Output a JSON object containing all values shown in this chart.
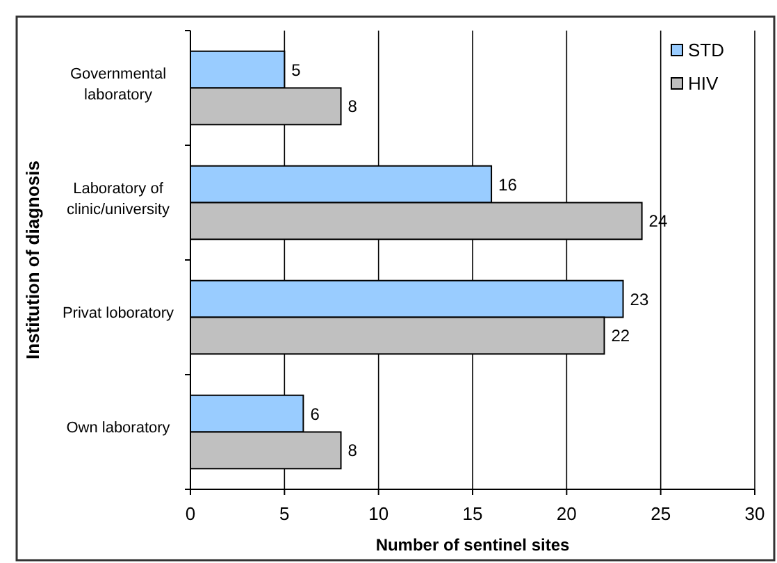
{
  "chart_data": {
    "type": "bar",
    "orientation": "horizontal",
    "xlabel": "Number of sentinel sites",
    "ylabel": "Institution of diagnosis",
    "categories": [
      "Governmental laboratory",
      "Laboratory of clinic/university",
      "Privat loboratory",
      "Own laboratory"
    ],
    "series": [
      {
        "name": "STD",
        "color": "#99ccff",
        "values": [
          5,
          16,
          23,
          6
        ]
      },
      {
        "name": "HIV",
        "color": "#c0c0c0",
        "values": [
          8,
          24,
          22,
          8
        ]
      }
    ],
    "xlim": [
      0,
      30
    ],
    "xticks": [
      0,
      5,
      10,
      15,
      20,
      25,
      30
    ],
    "grid": "x",
    "legend": "top right",
    "data_labels": true
  }
}
